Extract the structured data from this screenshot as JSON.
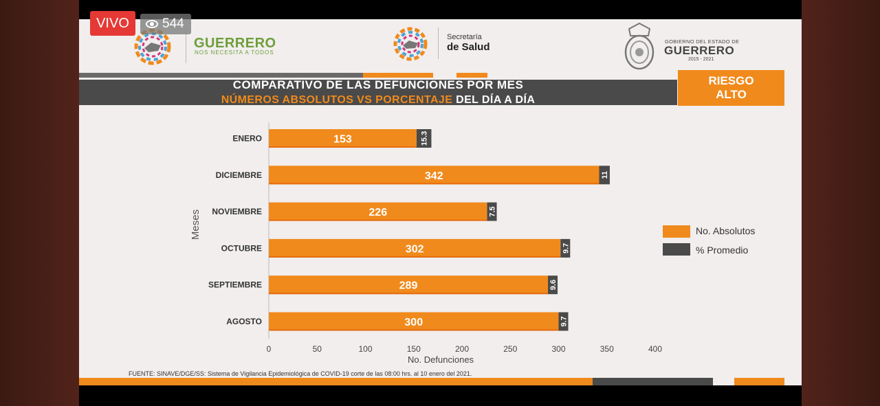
{
  "stream": {
    "live_label": "VIVO",
    "viewers": "544"
  },
  "header": {
    "guerrero_title": "GUERRERO",
    "guerrero_sub": "NOS NECESITA A TODOS",
    "secretaria_top": "Secretaría",
    "secretaria_bottom": "de Salud",
    "gobierno_top": "GOBIERNO DEL ESTADO DE",
    "gobierno_name": "GUERRERO",
    "gobierno_years": "2015 - 2021"
  },
  "title": {
    "line1": "COMPARATIVO DE LAS DEFUNCIONES POR MES",
    "line2_highlight": "NÚMEROS ABSOLUTOS VS PORCENTAJE",
    "line2_rest": " DEL DÍA A DÍA"
  },
  "risk": {
    "line1": "RIESGO",
    "line2": "ALTO"
  },
  "source": "FUENTE: SINAVE/DGE/SS: Sistema de Vigilancia Epidemiológica de COVID-19 corte de las 08:00 hrs. al 10 enero del 2021.",
  "colors": {
    "orange": "#f08a1c",
    "dark": "#4a4a4a",
    "green_line": "#6e9e3a"
  },
  "chart_data": {
    "type": "bar",
    "orientation": "horizontal",
    "stacked": true,
    "categories": [
      "ENERO",
      "DICIEMBRE",
      "NOVIEMBRE",
      "OCTUBRE",
      "SEPTIEMBRE",
      "AGOSTO"
    ],
    "series": [
      {
        "name": "No. Absolutos",
        "values": [
          153,
          342,
          226,
          302,
          289,
          300
        ],
        "labels": [
          "153",
          "342",
          "226",
          "302",
          "289",
          "300"
        ],
        "color": "#f08a1c"
      },
      {
        "name": "% Promedio",
        "values": [
          15.3,
          11,
          7.5,
          9.7,
          9.6,
          9.7
        ],
        "labels": [
          "15.3",
          "11",
          "7.5",
          "9.7",
          "9.6",
          "9.7"
        ],
        "color": "#4a4a4a"
      }
    ],
    "xlabel": "No. Defunciones",
    "ylabel": "Meses",
    "xlim": [
      0,
      400
    ],
    "xticks": [
      "0",
      "50",
      "100",
      "150",
      "200",
      "250",
      "300",
      "350",
      "400"
    ],
    "legend": "right"
  }
}
